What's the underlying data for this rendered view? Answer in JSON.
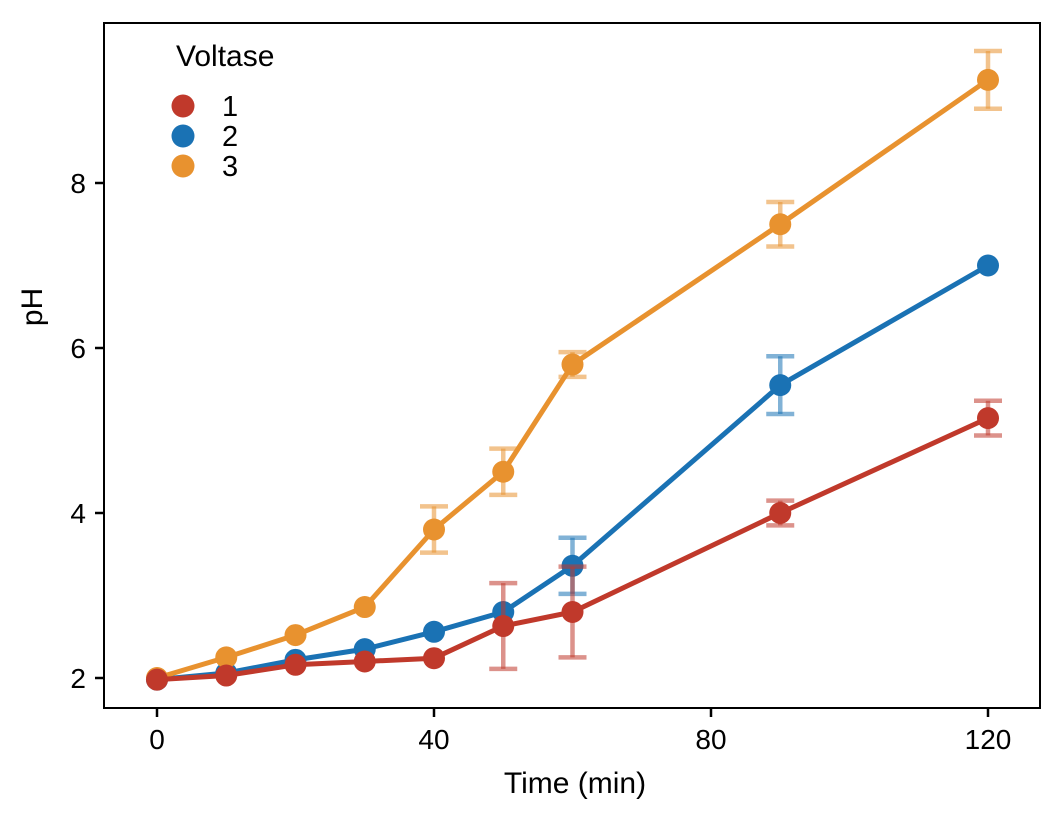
{
  "chart_data": {
    "type": "line",
    "title": "",
    "xlabel": "Time (min)",
    "ylabel": "pH",
    "x": [
      0,
      10,
      20,
      30,
      40,
      50,
      60,
      90,
      120
    ],
    "x_ticks": [
      "0",
      "40",
      "80",
      "120"
    ],
    "x_tick_values": [
      0,
      40,
      80,
      120
    ],
    "y_ticks": [
      "2",
      "4",
      "6",
      "8"
    ],
    "y_tick_values": [
      2,
      4,
      6,
      8
    ],
    "xlim": [
      -7.7,
      127.5
    ],
    "ylim": [
      1.64,
      9.93
    ],
    "grid": false,
    "background": "#ffffff",
    "axis_color": "#000000",
    "error_bar_opacity": 0.55,
    "legend": {
      "title": "Voltase",
      "position": "top-left-inside"
    },
    "series": [
      {
        "name": "1",
        "color": "#c0392b",
        "marker": "circle",
        "values": [
          1.98,
          2.03,
          2.16,
          2.2,
          2.24,
          2.63,
          2.8,
          4.0,
          5.15
        ],
        "errors": [
          0,
          0,
          0,
          0,
          0,
          0.52,
          0.55,
          0.15,
          0.21
        ]
      },
      {
        "name": "2",
        "color": "#1a72b4",
        "marker": "circle",
        "values": [
          1.98,
          2.06,
          2.22,
          2.35,
          2.56,
          2.8,
          3.36,
          5.55,
          7.0
        ],
        "errors": [
          0,
          0,
          0,
          0,
          0,
          0,
          0.34,
          0.35,
          0
        ]
      },
      {
        "name": "3",
        "color": "#e8922f",
        "marker": "circle",
        "values": [
          2.0,
          2.25,
          2.52,
          2.86,
          3.8,
          4.5,
          5.8,
          7.5,
          9.25
        ],
        "errors": [
          0,
          0,
          0,
          0,
          0.28,
          0.28,
          0.15,
          0.27,
          0.35
        ]
      }
    ]
  }
}
